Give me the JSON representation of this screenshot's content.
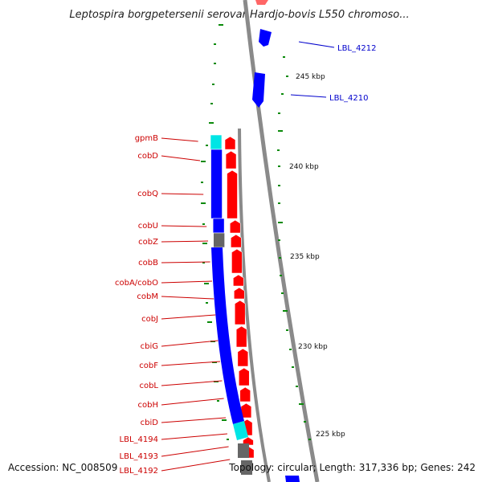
{
  "title": "Leptospira borgpetersenii serovar Hardjo-bovis L550 chromoso...",
  "footer": {
    "accession": "Accession: NC_008509",
    "summary": "Topology: circular; Length: 317,336 bp; Genes: 242"
  },
  "colors": {
    "backbone": "#8a8a8a",
    "forward": "#ff0000",
    "reverse": "#0000ff",
    "rna": "#00e5e5",
    "other": "#666666",
    "tick": "#0a8a0a",
    "label_red": "#cc0000",
    "label_blue": "#0000cc"
  },
  "ticks": [
    "245 kbp",
    "240 kbp",
    "235 kbp",
    "230 kbp",
    "225 kbp"
  ],
  "labels_left": [
    "gpmB",
    "cobD",
    "cobQ",
    "cobU",
    "cobZ",
    "cobB",
    "cobA/cobO",
    "cobM",
    "cobJ",
    "cbiG",
    "cobF",
    "cobL",
    "cobH",
    "cbiD",
    "LBL_4194",
    "LBL_4193",
    "LBL_4192"
  ],
  "labels_right": [
    "LBL_4212",
    "LBL_4210"
  ]
}
